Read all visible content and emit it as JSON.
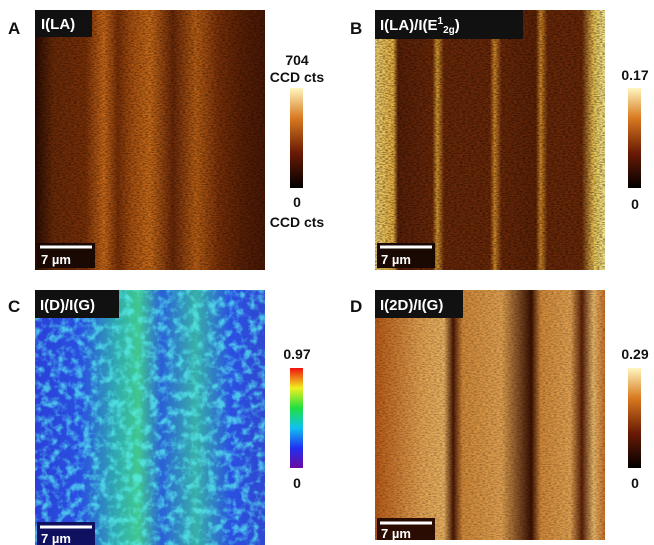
{
  "panels": [
    {
      "letter": "A",
      "title": "I(LA)",
      "scale_bar": "7 µm",
      "colorbar": {
        "max": "704",
        "max_unit": "CCD cts",
        "min": "0",
        "min_unit": "CCD cts"
      }
    },
    {
      "letter": "B",
      "title": {
        "start": "I(LA)/I(E",
        "sup": "1",
        "sub": "2g",
        "end": ")"
      },
      "scale_bar": "7 µm",
      "colorbar": {
        "max": "0.17",
        "min": "0"
      }
    },
    {
      "letter": "C",
      "title": "I(D)/I(G)",
      "scale_bar": "7 µm",
      "colorbar": {
        "max": "0.97",
        "min": "0"
      }
    },
    {
      "letter": "D",
      "title": "I(2D)/I(G)",
      "scale_bar": "7 µm",
      "colorbar": {
        "max": "0.29",
        "min": "0"
      }
    }
  ]
}
